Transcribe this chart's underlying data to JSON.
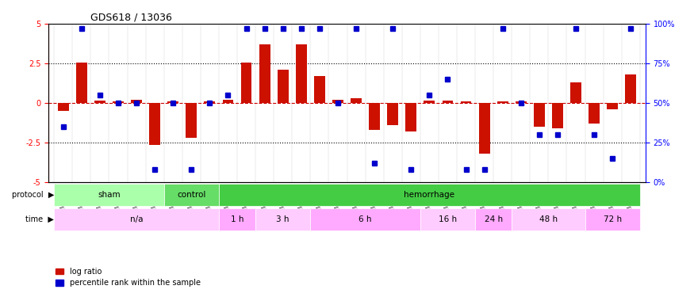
{
  "title": "GDS618 / 13036",
  "samples": [
    "GSM16636",
    "GSM16640",
    "GSM16641",
    "GSM16642",
    "GSM16643",
    "GSM16644",
    "GSM16637",
    "GSM16638",
    "GSM16639",
    "GSM16645",
    "GSM16646",
    "GSM16647",
    "GSM16648",
    "GSM16649",
    "GSM16650",
    "GSM16651",
    "GSM16652",
    "GSM16653",
    "GSM16654",
    "GSM16655",
    "GSM16656",
    "GSM16657",
    "GSM16658",
    "GSM16659",
    "GSM16660",
    "GSM16661",
    "GSM16662",
    "GSM16663",
    "GSM16664",
    "GSM16666",
    "GSM16667",
    "GSM16668"
  ],
  "log_ratio": [
    -0.5,
    2.55,
    0.15,
    0.1,
    0.2,
    -2.65,
    0.1,
    -2.2,
    0.1,
    0.2,
    2.55,
    3.7,
    2.1,
    3.7,
    1.7,
    0.2,
    0.3,
    -1.7,
    -1.4,
    -1.8,
    0.15,
    0.15,
    0.1,
    -3.2,
    0.1,
    0.1,
    -1.5,
    -1.6,
    1.3,
    -1.3,
    -0.4,
    1.8
  ],
  "percentile_rank": [
    35,
    97,
    55,
    50,
    50,
    8,
    50,
    8,
    50,
    55,
    97,
    97,
    97,
    97,
    97,
    50,
    97,
    12,
    97,
    8,
    55,
    65,
    8,
    8,
    97,
    50,
    30,
    30,
    97,
    30,
    15,
    97
  ],
  "protocol_groups": [
    {
      "label": "sham",
      "start": 0,
      "end": 5,
      "color": "#aaffaa"
    },
    {
      "label": "control",
      "start": 6,
      "end": 8,
      "color": "#66dd66"
    },
    {
      "label": "hemorrhage",
      "start": 9,
      "end": 31,
      "color": "#44cc44"
    }
  ],
  "time_groups": [
    {
      "label": "n/a",
      "start": 0,
      "end": 8,
      "color": "#ffccff"
    },
    {
      "label": "1 h",
      "start": 9,
      "end": 10,
      "color": "#ffaaff"
    },
    {
      "label": "3 h",
      "start": 11,
      "end": 13,
      "color": "#ffccff"
    },
    {
      "label": "6 h",
      "start": 14,
      "end": 19,
      "color": "#ffaaff"
    },
    {
      "label": "16 h",
      "start": 20,
      "end": 22,
      "color": "#ffccff"
    },
    {
      "label": "24 h",
      "start": 23,
      "end": 24,
      "color": "#ffaaff"
    },
    {
      "label": "48 h",
      "start": 25,
      "end": 28,
      "color": "#ffccff"
    },
    {
      "label": "72 h",
      "start": 29,
      "end": 31,
      "color": "#ffaaff"
    }
  ],
  "ylim": [
    -5,
    5
  ],
  "y2lim": [
    0,
    100
  ],
  "bar_color": "#cc1100",
  "dot_color": "#0000cc",
  "hline_color": "#cc0000",
  "hline_style": "dashed",
  "dotline_vals": [
    2.5,
    -2.5
  ],
  "dotline_style": "dotted",
  "dotline_color": "black"
}
